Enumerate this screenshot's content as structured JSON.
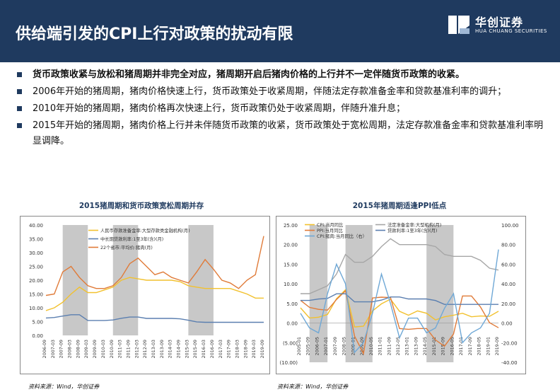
{
  "header": {
    "title": "供给端引发的CPI上行对政策的扰动有限"
  },
  "logo": {
    "name": "华创证券",
    "sub": "HUA CHUANG SECURITIES"
  },
  "bullets": [
    "货币政策收紧与放松和猪周期并非完全对应，猪周期开启后猪肉价格的上行并不一定伴随货币政策的收紧。",
    "2006年开始的猪周期，猪肉价格快速上行，货币政策处于收紧周期，伴随法定存款准备金率和贷款基准利率的调升；",
    "2010年开始的猪周期，猪肉价格再次快速上行，货币政策仍处于收紧周期，伴随升准升息；",
    "2015年开始的猪周期，猪肉价格上行并未伴随货币政策的收紧，货币政策处于宽松周期，法定存款准备金率和贷款基准利率明显调降。"
  ],
  "chart_data": [
    {
      "type": "line",
      "title": "2015猪周期和货币政策宽松周期并存",
      "ylim": [
        0,
        40
      ],
      "y_ticks": [
        "0.00",
        "5.00",
        "10.00",
        "15.00",
        "20.00",
        "25.00",
        "30.00",
        "35.00",
        "40.00"
      ],
      "x_labels": [
        "2006-09",
        "2007-03",
        "2007-09",
        "2008-03",
        "2008-09",
        "2009-03",
        "2009-09",
        "2010-03",
        "2010-09",
        "2011-03",
        "2011-09",
        "2012-03",
        "2012-09",
        "2013-03",
        "2013-09",
        "2014-03",
        "2014-09",
        "2015-03",
        "2015-09",
        "2016-03",
        "2016-09",
        "2017-03",
        "2017-09",
        "2018-03",
        "2018-09",
        "2019-03",
        "2019-09"
      ],
      "shaded": [
        [
          2,
          5
        ],
        [
          8,
          11
        ],
        [
          17,
          20
        ]
      ],
      "series": [
        {
          "name": "人民币存款准备金率:大型存款类金融机构(月)",
          "color": "#f2c12e",
          "values": [
            9,
            10,
            12,
            15,
            17.5,
            15.5,
            15.5,
            16.5,
            17.5,
            20,
            21,
            20.5,
            20,
            20,
            20,
            20,
            19.5,
            18,
            17.5,
            17,
            17,
            17,
            17,
            16,
            15,
            13.5,
            13.5
          ]
        },
        {
          "name": "中长期贷款利率:1至3年(含)(月)",
          "color": "#5b7fb0",
          "values": [
            6.3,
            6.5,
            7.0,
            7.5,
            7.5,
            5.4,
            5.4,
            5.4,
            5.6,
            6.2,
            6.65,
            6.65,
            6.15,
            6.15,
            6.15,
            6.15,
            6.0,
            5.5,
            4.9,
            4.75,
            4.75,
            4.75,
            4.75,
            4.75,
            4.75,
            4.75,
            4.75
          ]
        },
        {
          "name": "22个省市:平均价:猪肉(月)",
          "color": "#e07b39",
          "values": [
            14.5,
            15,
            23,
            25,
            21,
            18,
            17,
            17,
            18,
            21,
            26,
            28,
            25,
            22,
            23,
            21,
            20,
            19,
            23,
            27.5,
            24,
            20,
            19,
            17,
            20,
            22,
            36
          ]
        }
      ]
    },
    {
      "type": "line",
      "title": "2015年猪周期适逢PPI低点",
      "ylim": [
        -10,
        25
      ],
      "y2lim": [
        -40,
        100
      ],
      "y_ticks": [
        "(10.00)",
        "(5.00)",
        "0.00",
        "5.00",
        "10.00",
        "15.00",
        "20.00",
        "25.00"
      ],
      "y2_ticks": [
        "-40.00",
        "-20.00",
        "0.00",
        "20.00",
        "40.00",
        "60.00",
        "80.00",
        "100.00"
      ],
      "x_labels": [
        "2005-01",
        "2005-09",
        "2006-05",
        "2007-01",
        "2007-09",
        "2008-05",
        "2009-01",
        "2009-09",
        "2010-05",
        "2011-01",
        "2011-09",
        "2012-05",
        "2013-01",
        "2013-09",
        "2014-05",
        "2015-01",
        "2015-09",
        "2016-05",
        "2017-01",
        "2017-09",
        "2018-05",
        "2019-01",
        "2019-09"
      ],
      "shaded": [
        [
          1,
          3
        ],
        [
          5,
          8
        ],
        [
          14,
          17
        ]
      ],
      "series": [
        {
          "name": "CPI:当月同比",
          "color": "#f2c12e",
          "axis": "left",
          "values": [
            3.9,
            1.3,
            1.5,
            2.2,
            6.2,
            8.5,
            -1.0,
            -0.8,
            3.1,
            4.9,
            6.1,
            3.0,
            2.0,
            3.1,
            2.5,
            0.8,
            1.6,
            2.0,
            2.5,
            1.6,
            1.8,
            1.7,
            3.0
          ]
        },
        {
          "name": "PPI:当月同比",
          "color": "#e07b39",
          "axis": "left",
          "values": [
            5.8,
            4.0,
            3.5,
            3.3,
            6.0,
            8.2,
            -3.3,
            -7.8,
            6.4,
            6.6,
            6.5,
            -1.4,
            -1.6,
            -1.4,
            -1.4,
            -4.3,
            -5.9,
            -2.8,
            6.9,
            6.9,
            4.1,
            0.1,
            -1.2
          ]
        },
        {
          "name": "法定准备金率:大型机构(月)",
          "color": "#a6a6a6",
          "axis": "left",
          "values": [
            7.5,
            7.5,
            8.5,
            9.5,
            12.5,
            17.5,
            15.5,
            15.5,
            17.0,
            19.5,
            21.5,
            20.0,
            20.0,
            20.0,
            20.0,
            19.5,
            17.5,
            17.0,
            17.0,
            17.0,
            16.0,
            14.0,
            13.5
          ]
        },
        {
          "name": "贷款利率:1至3年(含)(月)",
          "color": "#5b7fb0",
          "axis": "left",
          "values": [
            5.76,
            5.76,
            6.12,
            6.3,
            7.47,
            7.47,
            5.4,
            5.4,
            5.4,
            5.85,
            6.65,
            6.65,
            6.15,
            6.15,
            6.15,
            5.75,
            4.75,
            4.75,
            4.75,
            4.75,
            4.75,
            4.75,
            4.75
          ]
        },
        {
          "name": "CPI:猪肉:当月同比（右）",
          "color": "#6fa8d6",
          "axis": "right",
          "values": [
            10,
            -5,
            -10,
            30,
            60,
            40,
            -30,
            -20,
            10,
            50,
            20,
            -15,
            5,
            5,
            -10,
            -5,
            15,
            30,
            -20,
            -10,
            -5,
            10,
            75
          ]
        }
      ]
    }
  ],
  "sources": [
    "资料来源：Wind，华创证券",
    "资料来源：Wind，华创证券"
  ]
}
